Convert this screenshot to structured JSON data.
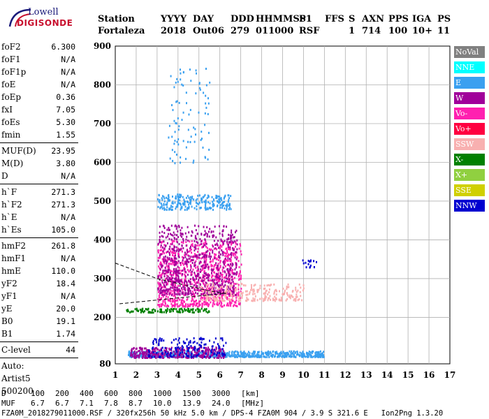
{
  "logo": {
    "line1": "Lowell",
    "line2": "DIGISONDE"
  },
  "header": {
    "row1": [
      "Station",
      "YYYY",
      "DAY",
      "DDD",
      "HHMMSS",
      "P1",
      "FFS",
      "S",
      "AXN",
      "PPS",
      "IGA",
      "PS"
    ],
    "row2": [
      "Fortaleza",
      "2018",
      "Out06",
      "279",
      "011000",
      "RSF",
      "",
      "1",
      "714",
      "100",
      "10+",
      "11"
    ]
  },
  "sidebar": {
    "group1": [
      {
        "k": "foF2",
        "v": "6.300"
      },
      {
        "k": "foF1",
        "v": "N/A"
      },
      {
        "k": "foF1p",
        "v": "N/A"
      },
      {
        "k": "foE",
        "v": "N/A"
      },
      {
        "k": "foEp",
        "v": "0.36"
      },
      {
        "k": "fxI",
        "v": "7.05"
      },
      {
        "k": "foEs",
        "v": "5.30"
      },
      {
        "k": "fmin",
        "v": "1.55"
      }
    ],
    "group2": [
      {
        "k": "MUF(D)",
        "v": "23.95"
      },
      {
        "k": "M(D)",
        "v": "3.80"
      },
      {
        "k": "D",
        "v": "N/A"
      }
    ],
    "group3": [
      {
        "k": "h`F",
        "v": "271.3"
      },
      {
        "k": "h`F2",
        "v": "271.3"
      },
      {
        "k": "h`E",
        "v": "N/A"
      },
      {
        "k": "h`Es",
        "v": "105.0"
      }
    ],
    "group4": [
      {
        "k": "hmF2",
        "v": "261.8"
      },
      {
        "k": "hmF1",
        "v": "N/A"
      },
      {
        "k": "hmE",
        "v": "110.0"
      },
      {
        "k": "yF2",
        "v": "18.4"
      },
      {
        "k": "yF1",
        "v": "N/A"
      },
      {
        "k": "yE",
        "v": "20.0"
      },
      {
        "k": "B0",
        "v": "19.1"
      },
      {
        "k": "B1",
        "v": "1.74"
      }
    ],
    "group5": [
      {
        "k": "C-level",
        "v": "44"
      }
    ],
    "auto": [
      "Auto:",
      "Artist5",
      "500200"
    ]
  },
  "legend": [
    {
      "label": "NoVal",
      "color": "#808080"
    },
    {
      "label": "NNE",
      "color": "#00ffff"
    },
    {
      "label": "E",
      "color": "#3aa0f0"
    },
    {
      "label": "W",
      "color": "#a0009a"
    },
    {
      "label": "Vo-",
      "color": "#ff20b0"
    },
    {
      "label": "Vo+",
      "color": "#ff0040"
    },
    {
      "label": "SSW",
      "color": "#f8b0b0"
    },
    {
      "label": "X-",
      "color": "#008000"
    },
    {
      "label": "X+",
      "color": "#90d040"
    },
    {
      "label": "SSE",
      "color": "#d0d000"
    },
    {
      "label": "NNW",
      "color": "#0000d0"
    }
  ],
  "chart_data": {
    "type": "scatter",
    "xlim": [
      1,
      17
    ],
    "ylim": [
      80,
      900
    ],
    "x_ticks": [
      "1",
      "2",
      "3",
      "4",
      "5",
      "6",
      "7",
      "8",
      "9",
      "10",
      "11",
      "12",
      "13",
      "14",
      "15",
      "16",
      "17"
    ],
    "y_ticks": [
      "80",
      "200",
      "300",
      "400",
      "500",
      "600",
      "700",
      "800",
      "900"
    ],
    "grid": true,
    "clusters": [
      {
        "name": "E",
        "x": [
          1.6,
          11
        ],
        "y": [
          100,
          115
        ]
      },
      {
        "name": "W",
        "x": [
          1.7,
          6.2
        ],
        "y": [
          98,
          125
        ]
      },
      {
        "name": "NNW",
        "x": [
          2.5,
          6.3
        ],
        "y": [
          100,
          150
        ]
      },
      {
        "name": "Vo-",
        "x": [
          3,
          7
        ],
        "y": [
          230,
          400
        ]
      },
      {
        "name": "W",
        "x": [
          3,
          6.8
        ],
        "y": [
          260,
          440
        ]
      },
      {
        "name": "SSW",
        "x": [
          5,
          10
        ],
        "y": [
          245,
          290
        ]
      },
      {
        "name": "X-",
        "x": [
          1.5,
          5.5
        ],
        "y": [
          215,
          225
        ]
      },
      {
        "name": "E",
        "x": [
          3,
          6.5
        ],
        "y": [
          480,
          520
        ]
      },
      {
        "name": "E",
        "x": [
          3.5,
          5.5
        ],
        "y": [
          600,
          850
        ]
      },
      {
        "name": "NNW",
        "x": [
          9.9,
          10.6
        ],
        "y": [
          330,
          350
        ]
      }
    ]
  },
  "footer": {
    "row1": [
      "D",
      "100",
      "200",
      "400",
      "600",
      "800",
      "1000",
      "1500",
      "3000",
      "[km]"
    ],
    "row2": [
      "MUF",
      "6.7",
      "6.7",
      "7.1",
      "7.8",
      "8.7",
      "10.0",
      "13.9",
      "24.0",
      "[MHz]"
    ],
    "row3": "FZA0M_2018279011000.RSF / 320fx256h 50 kHz 5.0 km / DPS-4 FZA0M 904 / 3.9 S 321.6 E   Ion2Png 1.3.20"
  }
}
